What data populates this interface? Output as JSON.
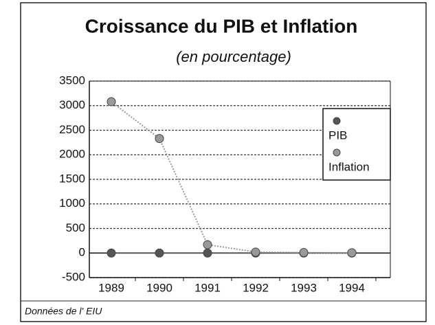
{
  "chart_data": {
    "type": "line",
    "title": "Croissance du PIB et Inflation",
    "subtitle": "(en pourcentage)",
    "source": "Données de l' EIU",
    "categories": [
      "1989",
      "1990",
      "1991",
      "1992",
      "1993",
      "1994"
    ],
    "series": [
      {
        "name": "PIB",
        "color": "#555555",
        "values": [
          0,
          0,
          0,
          0,
          0,
          0
        ]
      },
      {
        "name": "Inflation",
        "color": "#999999",
        "values": [
          3080,
          2330,
          170,
          20,
          10,
          5
        ]
      }
    ],
    "ylim": [
      -500,
      3500
    ],
    "yticks": [
      -500,
      0,
      500,
      1000,
      1500,
      2000,
      2500,
      3000,
      3500
    ],
    "grid": true,
    "legend": "right"
  }
}
